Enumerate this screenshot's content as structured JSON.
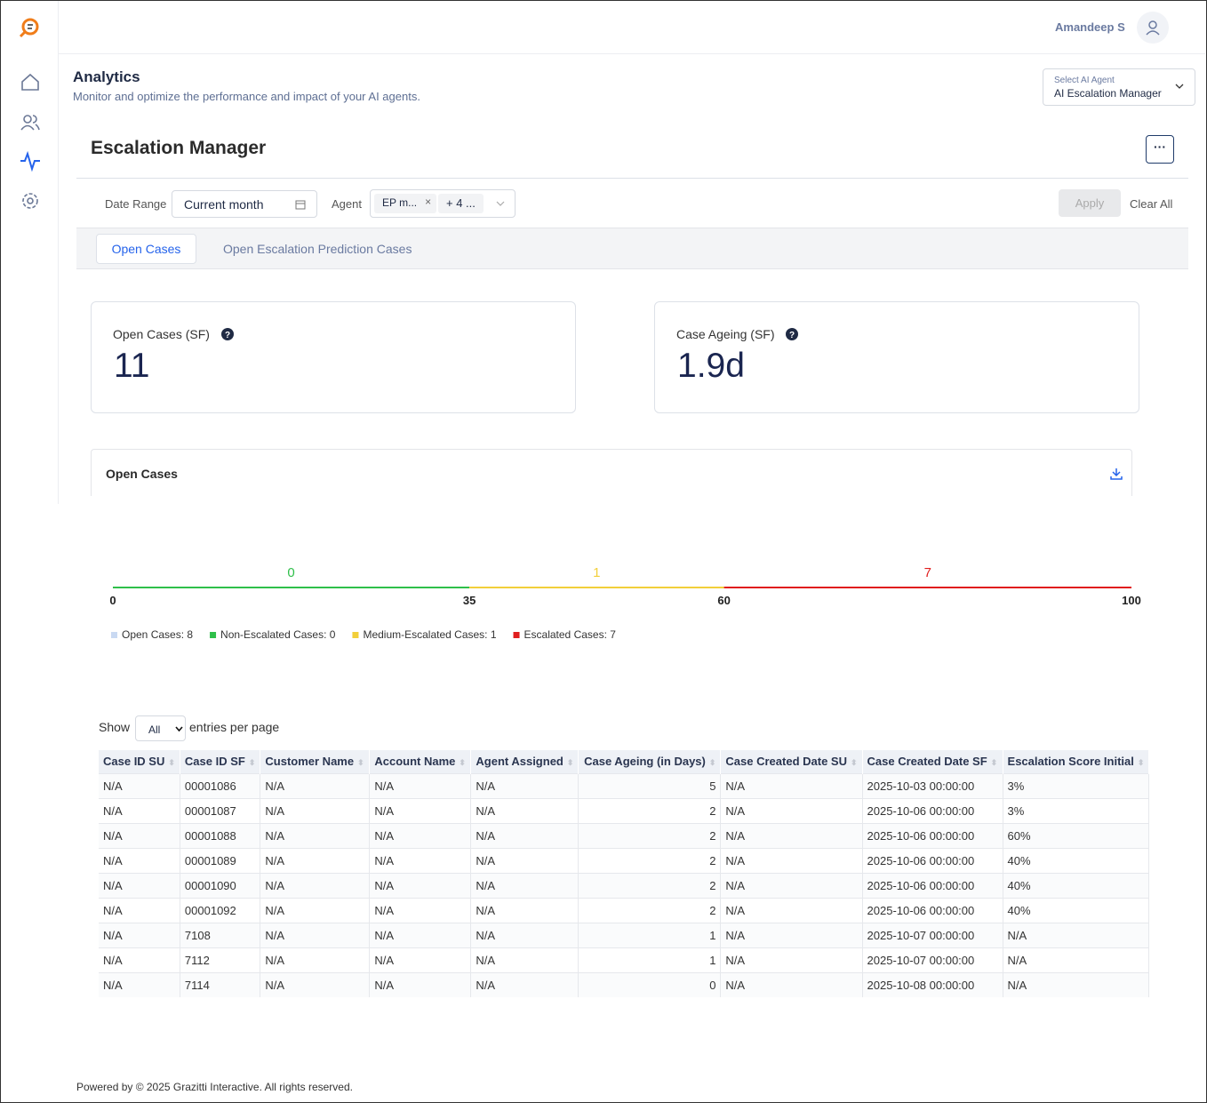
{
  "header": {
    "user": "Amandeep S"
  },
  "page": {
    "title": "Analytics",
    "subtitle": "Monitor and optimize the performance and impact of your AI agents.",
    "agent_select": {
      "label": "Select AI Agent",
      "value": "AI Escalation Manager"
    }
  },
  "dashboard": {
    "title": "Escalation Manager"
  },
  "filters": {
    "date_range_label": "Date Range",
    "date_range_value": "Current month",
    "agent_label": "Agent",
    "agent_chip": "EP m...",
    "agent_more": "+ 4 ...",
    "apply": "Apply",
    "clear": "Clear All"
  },
  "tabs": [
    "Open Cases",
    "Open Escalation Prediction Cases"
  ],
  "kpis": [
    {
      "label": "Open Cases (SF)",
      "value": "11"
    },
    {
      "label": "Case Ageing (SF)",
      "value": "1.9d"
    }
  ],
  "gauge": {
    "title": "Open Cases",
    "scale": [
      0,
      100
    ],
    "ticks": [
      0,
      35,
      60,
      100
    ],
    "segments": [
      {
        "range": [
          0,
          35
        ],
        "count": 0,
        "color": "#2fbf4a"
      },
      {
        "range": [
          35,
          60
        ],
        "count": 1,
        "color": "#f2cf3a"
      },
      {
        "range": [
          60,
          100
        ],
        "count": 7,
        "color": "#e01e1e"
      }
    ],
    "legend": [
      {
        "text": "Open Cases: 8",
        "color": "#c9d9f2"
      },
      {
        "text": "Non-Escalated Cases: 0",
        "color": "#2fbf4a"
      },
      {
        "text": "Medium-Escalated Cases: 1",
        "color": "#f2cf3a"
      },
      {
        "text": "Escalated Cases: 7",
        "color": "#e01e1e"
      }
    ]
  },
  "table": {
    "show_label": "Show",
    "page_size": "All",
    "entries_label": "entries per page",
    "columns": [
      "Case ID SU",
      "Case ID SF",
      "Customer Name",
      "Account Name",
      "Agent Assigned",
      "Case Ageing (in Days)",
      "Case Created Date SU",
      "Case Created Date SF",
      "Escalation Score Initial"
    ],
    "rows": [
      [
        "N/A",
        "00001086",
        "N/A",
        "N/A",
        "N/A",
        5,
        "N/A",
        "2025-10-03 00:00:00",
        "3%"
      ],
      [
        "N/A",
        "00001087",
        "N/A",
        "N/A",
        "N/A",
        2,
        "N/A",
        "2025-10-06 00:00:00",
        "3%"
      ],
      [
        "N/A",
        "00001088",
        "N/A",
        "N/A",
        "N/A",
        2,
        "N/A",
        "2025-10-06 00:00:00",
        "60%"
      ],
      [
        "N/A",
        "00001089",
        "N/A",
        "N/A",
        "N/A",
        2,
        "N/A",
        "2025-10-06 00:00:00",
        "40%"
      ],
      [
        "N/A",
        "00001090",
        "N/A",
        "N/A",
        "N/A",
        2,
        "N/A",
        "2025-10-06 00:00:00",
        "40%"
      ],
      [
        "N/A",
        "00001092",
        "N/A",
        "N/A",
        "N/A",
        2,
        "N/A",
        "2025-10-06 00:00:00",
        "40%"
      ],
      [
        "N/A",
        "7108",
        "N/A",
        "N/A",
        "N/A",
        1,
        "N/A",
        "2025-10-07 00:00:00",
        "N/A"
      ],
      [
        "N/A",
        "7112",
        "N/A",
        "N/A",
        "N/A",
        1,
        "N/A",
        "2025-10-07 00:00:00",
        "N/A"
      ],
      [
        "N/A",
        "7114",
        "N/A",
        "N/A",
        "N/A",
        0,
        "N/A",
        "2025-10-08 00:00:00",
        "N/A"
      ]
    ]
  },
  "footer": "Powered by © 2025 Grazitti Interactive. All rights reserved."
}
